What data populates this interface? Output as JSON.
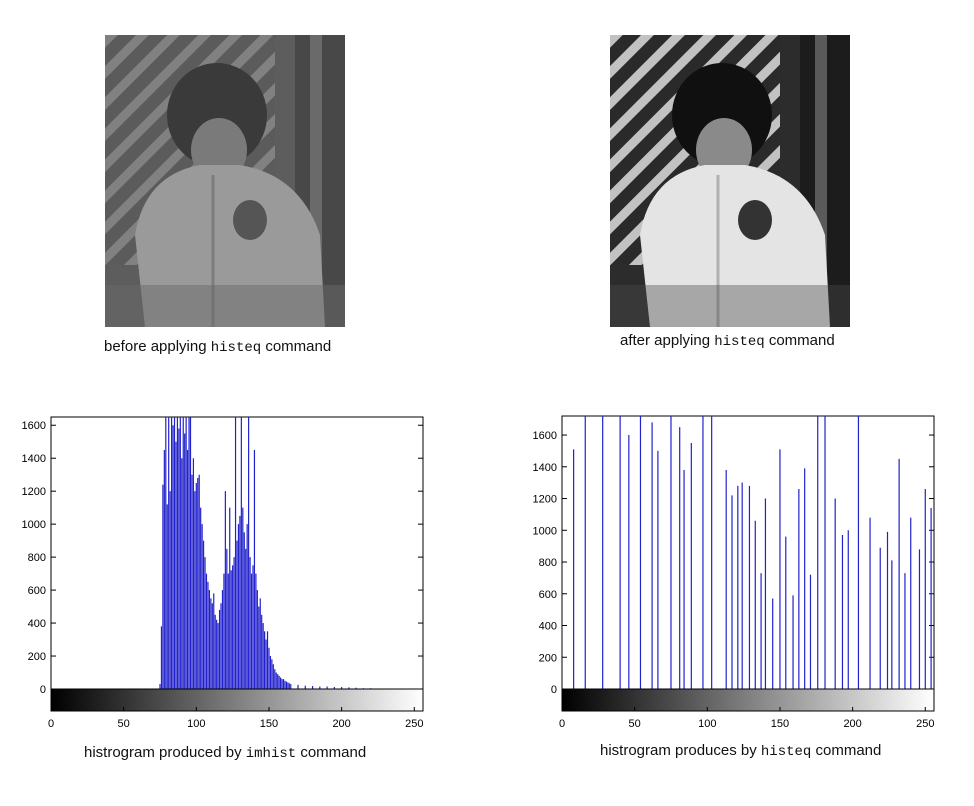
{
  "figure": {
    "caption_before": {
      "pre": "before applying ",
      "cmd": "histeq",
      "post": "  command"
    },
    "caption_after": {
      "pre": "after applying ",
      "cmd": "histeq",
      "post": " command"
    },
    "caption_hist_left": {
      "pre": "histrogram produced by ",
      "cmd": "imhist",
      "post": " command"
    },
    "caption_hist_right": {
      "pre": "histrogram produces by ",
      "cmd": "histeq",
      "post": " command"
    }
  },
  "chart_data": [
    {
      "type": "bar",
      "title": "",
      "xlabel": "",
      "ylabel": "",
      "xlim": [
        0,
        256
      ],
      "ylim": [
        0,
        1650
      ],
      "x_ticks": [
        0,
        50,
        100,
        150,
        200,
        250
      ],
      "y_ticks": [
        0,
        200,
        400,
        600,
        800,
        1000,
        1200,
        1400,
        1600
      ],
      "bar_color": "#2222cc",
      "grayscale_colorbar": true,
      "x": [
        75,
        76,
        77,
        78,
        79,
        80,
        81,
        82,
        83,
        84,
        85,
        86,
        87,
        88,
        89,
        90,
        91,
        92,
        93,
        94,
        95,
        96,
        97,
        98,
        99,
        100,
        101,
        102,
        103,
        104,
        105,
        106,
        107,
        108,
        109,
        110,
        111,
        112,
        113,
        114,
        115,
        116,
        117,
        118,
        119,
        120,
        121,
        122,
        123,
        124,
        125,
        126,
        127,
        128,
        129,
        130,
        131,
        132,
        133,
        134,
        135,
        136,
        137,
        138,
        139,
        140,
        141,
        142,
        143,
        144,
        145,
        146,
        147,
        148,
        149,
        150,
        151,
        152,
        153,
        154,
        155,
        156,
        157,
        158,
        159,
        160,
        161,
        162,
        163,
        164,
        165,
        170,
        175,
        180,
        185,
        190,
        195,
        200,
        205,
        210,
        215,
        220
      ],
      "values": [
        30,
        380,
        1240,
        1450,
        1650,
        1120,
        1650,
        1200,
        1650,
        1600,
        1650,
        1500,
        1650,
        1580,
        1650,
        1400,
        1650,
        1550,
        1650,
        1450,
        1650,
        1650,
        1300,
        1400,
        1200,
        1250,
        1280,
        1300,
        1100,
        1000,
        900,
        800,
        700,
        650,
        600,
        550,
        520,
        580,
        450,
        420,
        400,
        480,
        520,
        600,
        700,
        1200,
        850,
        700,
        1100,
        720,
        750,
        800,
        1650,
        900,
        1000,
        1050,
        1650,
        1100,
        950,
        850,
        1000,
        1650,
        800,
        700,
        750,
        1450,
        700,
        600,
        500,
        550,
        450,
        400,
        350,
        300,
        350,
        250,
        200,
        180,
        150,
        120,
        100,
        90,
        80,
        70,
        60,
        60,
        50,
        45,
        40,
        35,
        30,
        25,
        20,
        18,
        15,
        15,
        12,
        12,
        10,
        8,
        5,
        5
      ],
      "colorbar_ticks": [
        0,
        50,
        100,
        150,
        200,
        250
      ]
    },
    {
      "type": "bar",
      "title": "",
      "xlabel": "",
      "ylabel": "",
      "xlim": [
        0,
        256
      ],
      "ylim": [
        0,
        1720
      ],
      "x_ticks": [
        0,
        50,
        100,
        150,
        200,
        250
      ],
      "y_ticks": [
        0,
        200,
        400,
        600,
        800,
        1000,
        1200,
        1400,
        1600
      ],
      "bar_color": "#2222cc",
      "grayscale_colorbar": true,
      "x": [
        8,
        16,
        28,
        40,
        46,
        54,
        62,
        66,
        75,
        81,
        84,
        89,
        97,
        103,
        113,
        117,
        121,
        124,
        129,
        133,
        137,
        140,
        145,
        150,
        154,
        159,
        163,
        167,
        171,
        176,
        181,
        188,
        193,
        197,
        204,
        212,
        219,
        224,
        227,
        232,
        236,
        240,
        246,
        250,
        254
      ],
      "values": [
        1510,
        1720,
        1720,
        1720,
        1600,
        1720,
        1680,
        1500,
        1720,
        1650,
        1380,
        1550,
        1720,
        1720,
        1380,
        1220,
        1280,
        1300,
        1280,
        1060,
        730,
        1200,
        570,
        1510,
        960,
        590,
        1260,
        1390,
        720,
        1720,
        1720,
        1200,
        970,
        1000,
        1720,
        1080,
        890,
        990,
        810,
        1450,
        730,
        1080,
        880,
        1260,
        1140
      ],
      "colorbar_ticks": [
        0,
        50,
        100,
        150,
        200,
        250
      ]
    }
  ]
}
